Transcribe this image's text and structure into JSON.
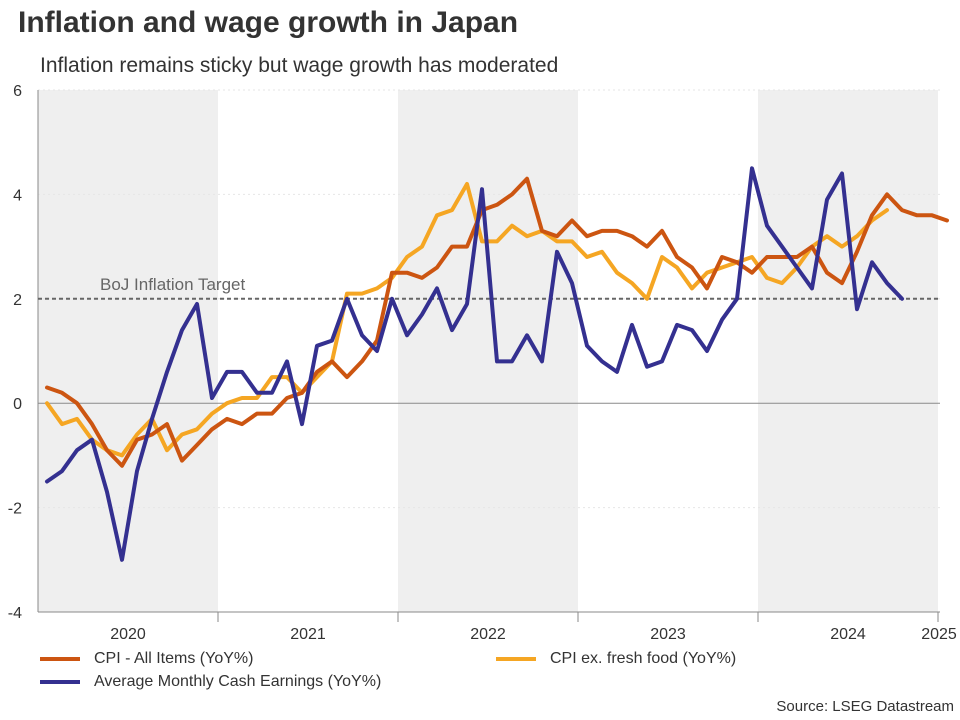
{
  "header": {
    "title": "Inflation and wage growth in Japan",
    "subtitle": "Inflation remains sticky but wage growth has moderated"
  },
  "footer": {
    "source": "Source: LSEG Datastream"
  },
  "colors": {
    "cpi_all": "#cc5511",
    "cpi_core": "#f5a623",
    "wages": "#343090",
    "band": "#efefef",
    "target_line": "#666666"
  },
  "chart_data": {
    "type": "line",
    "title": "Inflation and wage growth in Japan",
    "subtitle": "Inflation remains sticky but wage growth has moderated",
    "xlabel": "",
    "ylabel": "",
    "ylim": [
      -4,
      6
    ],
    "yticks": [
      6,
      4,
      2,
      0,
      -2,
      -4
    ],
    "x_start": "2020-01",
    "x_end": "2025-08",
    "year_labels": [
      "2020",
      "2021",
      "2022",
      "2023",
      "2024",
      "2025"
    ],
    "shaded_years": [
      "2020",
      "2022",
      "2024"
    ],
    "reference_line": {
      "value": 2,
      "label": "BoJ Inflation Target"
    },
    "series": [
      {
        "name": "CPI - All Items (YoY%)",
        "color_key": "cpi_all",
        "start": "2020-01",
        "values": [
          0.3,
          0.2,
          0.0,
          -0.4,
          -0.9,
          -1.2,
          -0.7,
          -0.6,
          -0.4,
          -1.1,
          -0.8,
          -0.5,
          -0.3,
          -0.4,
          -0.2,
          -0.2,
          0.1,
          0.2,
          0.6,
          0.8,
          0.5,
          0.8,
          1.2,
          2.5,
          2.5,
          2.4,
          2.6,
          3.0,
          3.0,
          3.7,
          3.8,
          4.0,
          4.3,
          3.3,
          3.2,
          3.5,
          3.2,
          3.3,
          3.3,
          3.2,
          3.0,
          3.3,
          2.8,
          2.6,
          2.2,
          2.8,
          2.7,
          2.5,
          2.8,
          2.8,
          2.8,
          3.0,
          2.5,
          2.3,
          2.9,
          3.6,
          4.0,
          3.7,
          3.6,
          3.6,
          3.5
        ]
      },
      {
        "name": "CPI ex. fresh food (YoY%)",
        "color_key": "cpi_core",
        "start": "2020-01",
        "values": [
          0.0,
          -0.4,
          -0.3,
          -0.7,
          -0.9,
          -1.0,
          -0.6,
          -0.3,
          -0.9,
          -0.6,
          -0.5,
          -0.2,
          0.0,
          0.1,
          0.1,
          0.5,
          0.5,
          0.2,
          0.5,
          0.8,
          2.1,
          2.1,
          2.2,
          2.4,
          2.8,
          3.0,
          3.6,
          3.7,
          4.2,
          3.1,
          3.1,
          3.4,
          3.2,
          3.3,
          3.1,
          3.1,
          2.8,
          2.9,
          2.5,
          2.3,
          2.0,
          2.8,
          2.6,
          2.2,
          2.5,
          2.6,
          2.7,
          2.8,
          2.4,
          2.3,
          2.6,
          3.0,
          3.2,
          3.0,
          3.2,
          3.5,
          3.7
        ]
      },
      {
        "name": "Average Monthly Cash Earnings (YoY%)",
        "color_key": "wages",
        "start": "2020-01",
        "values": [
          -1.5,
          -1.3,
          -0.9,
          -0.7,
          -1.7,
          -3.0,
          -1.3,
          -0.3,
          0.6,
          1.4,
          1.9,
          0.1,
          0.6,
          0.6,
          0.2,
          0.2,
          0.8,
          -0.4,
          1.1,
          1.2,
          2.0,
          1.3,
          1.0,
          2.0,
          1.3,
          1.7,
          2.2,
          1.4,
          1.9,
          4.1,
          0.8,
          0.8,
          1.3,
          0.8,
          2.9,
          2.3,
          1.1,
          0.8,
          0.6,
          1.5,
          0.7,
          0.8,
          1.5,
          1.4,
          1.0,
          1.6,
          2.0,
          4.5,
          3.4,
          3.0,
          2.6,
          2.2,
          3.9,
          4.4,
          1.8,
          2.7,
          2.3,
          2.0
        ]
      }
    ]
  }
}
